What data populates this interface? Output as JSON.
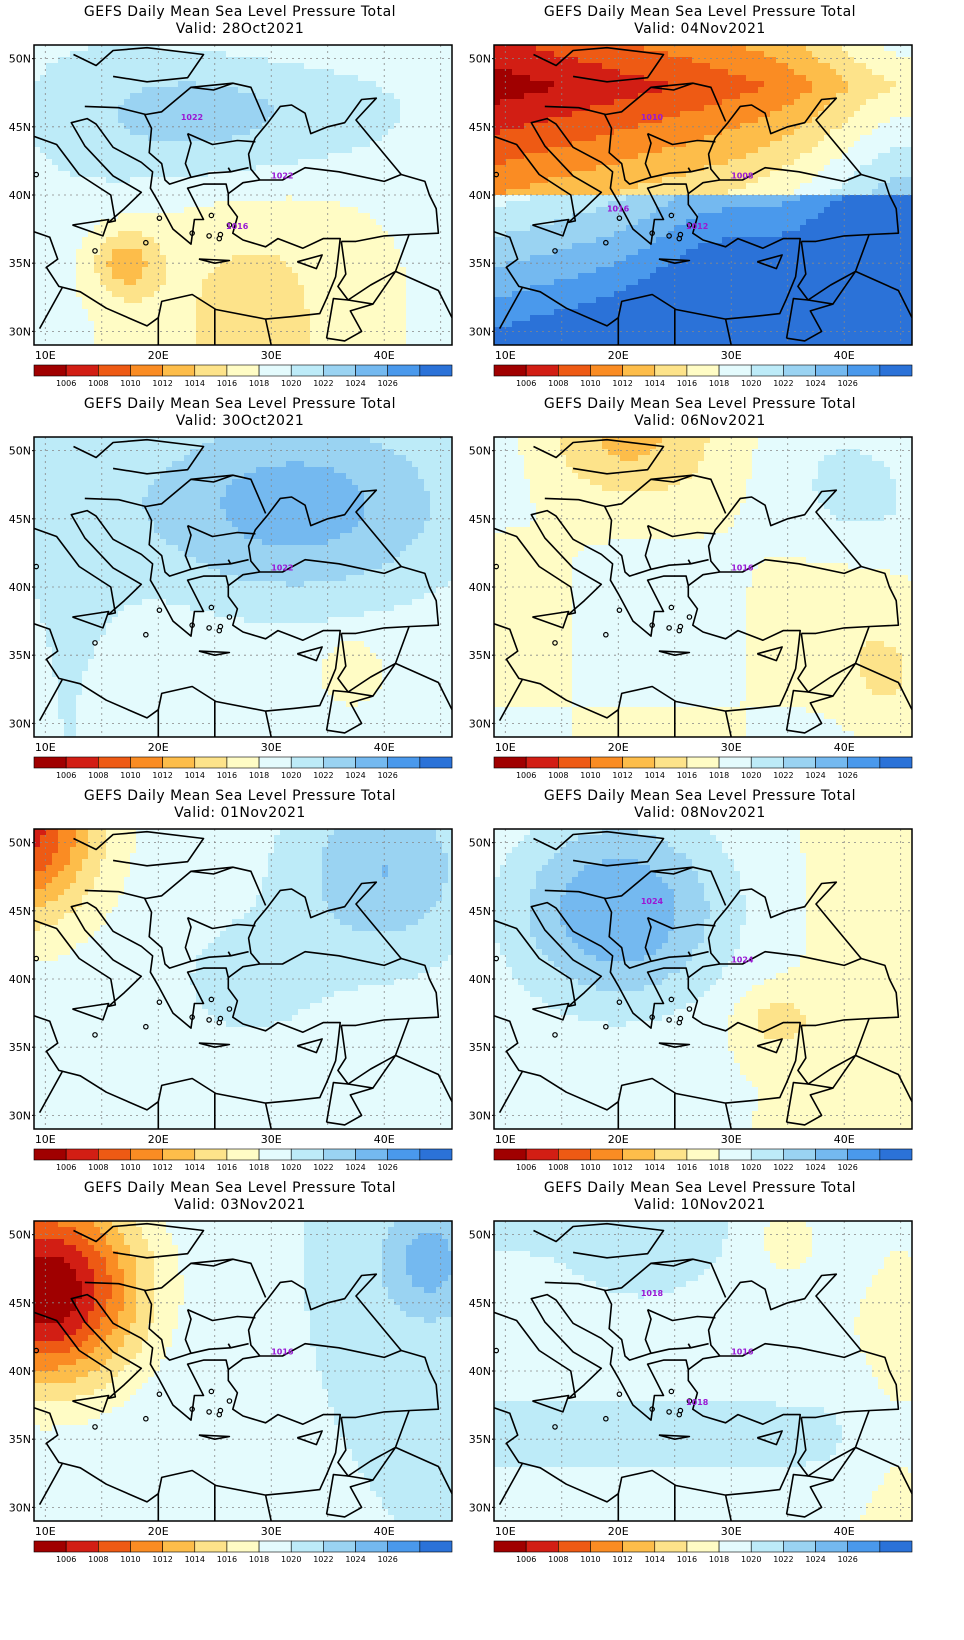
{
  "figure": {
    "panels": [
      {
        "title": "GEFS Daily Mean Sea Level Pressure Total",
        "valid": "Valid: 28Oct2021",
        "contour_labels": [
          "1022",
          "1022",
          "1016"
        ],
        "regime": "high_north_low_south"
      },
      {
        "title": "GEFS Daily Mean Sea Level Pressure Total",
        "valid": "Valid: 04Nov2021",
        "contour_labels": [
          "1008",
          "1010",
          "1012",
          "1016"
        ],
        "regime": "deep_low_north"
      },
      {
        "title": "GEFS Daily Mean Sea Level Pressure Total",
        "valid": "Valid: 30Oct2021",
        "contour_labels": [
          "1022"
        ],
        "regime": "high_north_east"
      },
      {
        "title": "GEFS Daily Mean Sea Level Pressure Total",
        "valid": "Valid: 06Nov2021",
        "contour_labels": [
          "1016"
        ],
        "regime": "weak_low_north"
      },
      {
        "title": "GEFS Daily Mean Sea Level Pressure Total",
        "valid": "Valid: 01Nov2021",
        "contour_labels": [],
        "regime": "low_northwest"
      },
      {
        "title": "GEFS Daily Mean Sea Level Pressure Total",
        "valid": "Valid: 08Nov2021",
        "contour_labels": [
          "1024",
          "1024"
        ],
        "regime": "high_north_center"
      },
      {
        "title": "GEFS Daily Mean Sea Level Pressure Total",
        "valid": "Valid: 03Nov2021",
        "contour_labels": [
          "1016"
        ],
        "regime": "deep_low_northwest"
      },
      {
        "title": "GEFS Daily Mean Sea Level Pressure Total",
        "valid": "Valid: 10Nov2021",
        "contour_labels": [
          "1016",
          "1018",
          "1018"
        ],
        "regime": "mild_uniform"
      }
    ],
    "axes": {
      "lat_ticks": [
        "50N",
        "45N",
        "40N",
        "35N",
        "30N"
      ],
      "lon_ticks": [
        "10E",
        "20E",
        "30E",
        "40E"
      ]
    },
    "colorbar": {
      "labels": [
        "1006",
        "1008",
        "1010",
        "1012",
        "1014",
        "1016",
        "1018",
        "1020",
        "1022",
        "1024",
        "1026"
      ],
      "colors": [
        "#a00000",
        "#d21e14",
        "#ee5a14",
        "#fa8c23",
        "#fdbd4a",
        "#fde38a",
        "#fffcc5",
        "#e4fbfd",
        "#bdebf8",
        "#9ad3f2",
        "#74b9f0",
        "#4a99ec",
        "#2b72d8"
      ]
    },
    "contour_color": "#9a19d3"
  }
}
